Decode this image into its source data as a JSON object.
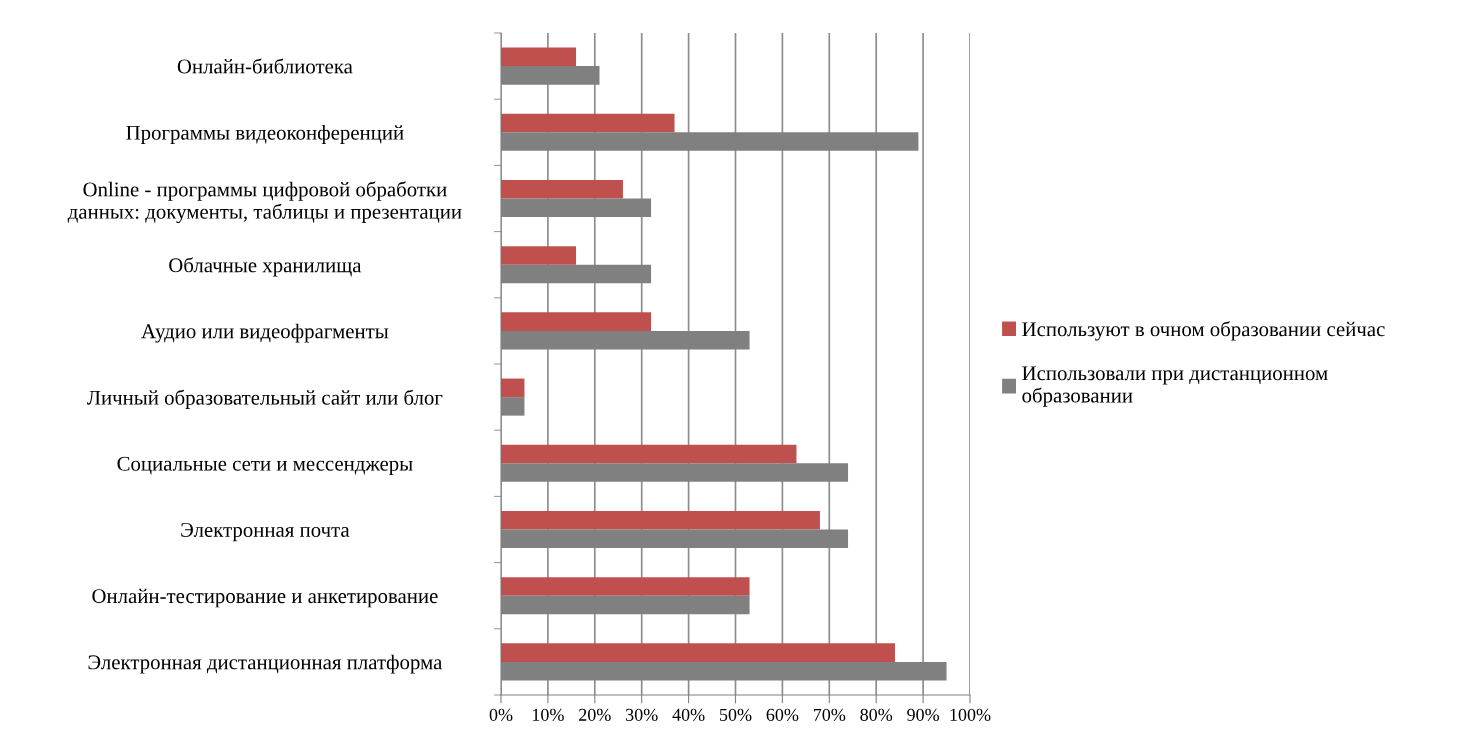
{
  "chart_data": {
    "type": "bar",
    "orientation": "horizontal",
    "categories": [
      "Онлайн-библиотека",
      "Программы видеоконференций",
      "Online - программы цифровой обработки\nданных: документы, таблицы и презентации",
      "Облачные хранилища",
      "Аудио или видеофрагменты",
      "Личный образовательный сайт или блог",
      "Социальные сети и мессенджеры",
      "Электронная почта",
      "Онлайн-тестирование и анкетирование",
      "Электронная дистанционная платформа"
    ],
    "series": [
      {
        "name": "Используют в очном образовании сейчас",
        "color": "#c0504d",
        "values": [
          16,
          37,
          26,
          16,
          32,
          5,
          63,
          68,
          53,
          84
        ]
      },
      {
        "name": "Использовали при дистанционном\nобразовании",
        "color": "#808080",
        "values": [
          21,
          89,
          32,
          32,
          53,
          5,
          74,
          74,
          53,
          95
        ]
      }
    ],
    "xlim": [
      0,
      100
    ],
    "xticks": [
      {
        "value": 0,
        "label": "0%"
      },
      {
        "value": 10,
        "label": "10%"
      },
      {
        "value": 20,
        "label": "20%"
      },
      {
        "value": 30,
        "label": "30%"
      },
      {
        "value": 40,
        "label": "40%"
      },
      {
        "value": 50,
        "label": "50%"
      },
      {
        "value": 60,
        "label": "60%"
      },
      {
        "value": 70,
        "label": "70%"
      },
      {
        "value": 80,
        "label": "80%"
      },
      {
        "value": 90,
        "label": "90%"
      },
      {
        "value": 100,
        "label": "100%"
      }
    ],
    "grid": "x",
    "legend": "right"
  }
}
